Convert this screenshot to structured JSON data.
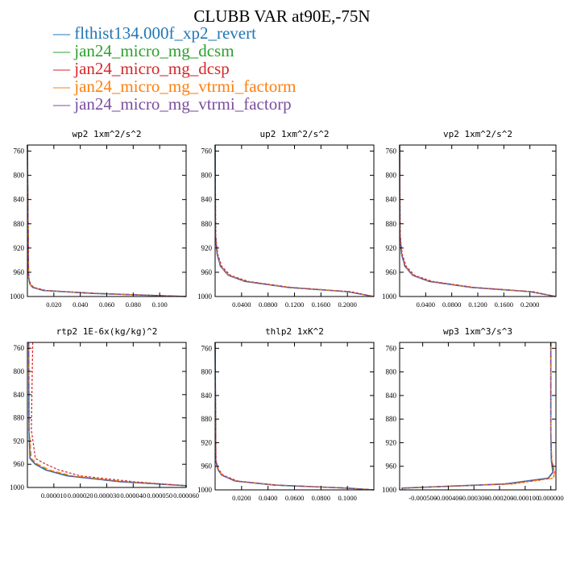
{
  "title": "CLUBB VAR at90E,-75N",
  "legend": [
    {
      "label": "flthist134.000f_xp2_revert",
      "color": "#1f77b4"
    },
    {
      "label": "jan24_micro_mg_dcsm",
      "color": "#2ca02c"
    },
    {
      "label": "jan24_micro_mg_dcsp",
      "color": "#d62728"
    },
    {
      "label": "jan24_micro_mg_vtrmi_factorm",
      "color": "#ff7f0e"
    },
    {
      "label": "jan24_micro_mg_vtrmi_factorp",
      "color": "#7b4ea0"
    }
  ],
  "chart_data": [
    {
      "type": "line",
      "title": "wp2   1xm^2/s^2",
      "xlim": [
        0,
        0.12
      ],
      "ylim": [
        1000,
        750
      ],
      "xticks": [
        "0.020",
        "0.040",
        "0.060",
        "0.080",
        "0.100"
      ],
      "xtick_values": [
        0.02,
        0.04,
        0.06,
        0.08,
        0.1
      ],
      "yticks": [
        760,
        800,
        840,
        880,
        920,
        960,
        1000
      ],
      "y": [
        750,
        960,
        970,
        980,
        985,
        990,
        995,
        1000
      ],
      "series": [
        {
          "values": [
            0.0,
            0.0008,
            0.001,
            0.002,
            0.004,
            0.012,
            0.05,
            0.12
          ]
        },
        {
          "values": [
            0.0,
            0.0008,
            0.001,
            0.0021,
            0.0042,
            0.012,
            0.052,
            0.12
          ]
        },
        {
          "values": [
            0.0,
            0.001,
            0.0013,
            0.0025,
            0.005,
            0.014,
            0.055,
            0.12
          ]
        },
        {
          "values": [
            0.0,
            0.0009,
            0.0011,
            0.0022,
            0.0043,
            0.013,
            0.051,
            0.12
          ]
        },
        {
          "values": [
            0.0,
            0.0008,
            0.001,
            0.002,
            0.0041,
            0.012,
            0.05,
            0.12
          ]
        }
      ]
    },
    {
      "type": "line",
      "title": "up2   1xm^2/s^2",
      "xlim": [
        0,
        0.24
      ],
      "ylim": [
        1000,
        750
      ],
      "xticks": [
        "0.0400",
        "0.0800",
        "0.1200",
        "0.1600",
        "0.2000"
      ],
      "xtick_values": [
        0.04,
        0.08,
        0.12,
        0.16,
        0.2
      ],
      "yticks": [
        760,
        800,
        840,
        880,
        920,
        960,
        1000
      ],
      "y": [
        750,
        900,
        930,
        950,
        965,
        975,
        985,
        992,
        1000
      ],
      "series": [
        {
          "values": [
            0.0,
            0.0005,
            0.003,
            0.008,
            0.02,
            0.045,
            0.11,
            0.2,
            0.24
          ]
        },
        {
          "values": [
            0.0,
            0.0005,
            0.003,
            0.0085,
            0.021,
            0.046,
            0.112,
            0.2,
            0.24
          ]
        },
        {
          "values": [
            0.0,
            0.001,
            0.004,
            0.01,
            0.023,
            0.05,
            0.115,
            0.205,
            0.24
          ]
        },
        {
          "values": [
            0.0,
            0.0005,
            0.003,
            0.0082,
            0.0205,
            0.046,
            0.11,
            0.2,
            0.24
          ]
        },
        {
          "values": [
            0.0,
            0.0005,
            0.003,
            0.008,
            0.02,
            0.045,
            0.11,
            0.2,
            0.24
          ]
        }
      ]
    },
    {
      "type": "line",
      "title": "vp2   1xm^2/s^2",
      "xlim": [
        0,
        0.24
      ],
      "ylim": [
        1000,
        750
      ],
      "xticks": [
        "0.0400",
        "0.0800",
        "0.1200",
        "0.1600",
        "0.2000"
      ],
      "xtick_values": [
        0.04,
        0.08,
        0.12,
        0.16,
        0.2
      ],
      "yticks": [
        760,
        800,
        840,
        880,
        920,
        960,
        1000
      ],
      "y": [
        750,
        900,
        930,
        950,
        965,
        975,
        985,
        992,
        1000
      ],
      "series": [
        {
          "values": [
            0.0,
            0.0005,
            0.003,
            0.008,
            0.02,
            0.045,
            0.11,
            0.2,
            0.24
          ]
        },
        {
          "values": [
            0.0,
            0.0005,
            0.003,
            0.0085,
            0.021,
            0.046,
            0.112,
            0.2,
            0.24
          ]
        },
        {
          "values": [
            0.0,
            0.001,
            0.004,
            0.01,
            0.023,
            0.05,
            0.115,
            0.205,
            0.24
          ]
        },
        {
          "values": [
            0.0,
            0.0005,
            0.003,
            0.0082,
            0.0205,
            0.046,
            0.11,
            0.2,
            0.24
          ]
        },
        {
          "values": [
            0.0,
            0.0005,
            0.003,
            0.008,
            0.02,
            0.045,
            0.11,
            0.2,
            0.24
          ]
        }
      ]
    },
    {
      "type": "line",
      "title": "rtp2   1E-6x(kg/kg)^2",
      "xlim": [
        0,
        6e-05
      ],
      "ylim": [
        1000,
        750
      ],
      "xticks": [
        "0.000010",
        "0.000020",
        "0.000030",
        "0.000040",
        "0.000050",
        "0.000060"
      ],
      "xtick_values": [
        1e-05,
        2e-05,
        3e-05,
        4e-05,
        5e-05,
        6e-05
      ],
      "yticks": [
        760,
        800,
        840,
        880,
        920,
        960,
        1000
      ],
      "y": [
        750,
        900,
        950,
        960,
        970,
        980,
        990,
        997,
        1000
      ],
      "series": [
        {
          "values": [
            5e-07,
            6e-07,
            1e-06,
            3e-06,
            7e-06,
            1.5e-05,
            3.5e-05,
            6e-05,
            6e-05
          ]
        },
        {
          "values": [
            5e-07,
            6e-07,
            1.2e-06,
            3.5e-06,
            7.5e-06,
            1.6e-05,
            3.6e-05,
            6e-05,
            6e-05
          ]
        },
        {
          "values": [
            2e-06,
            1.5e-06,
            3e-06,
            7e-06,
            1.2e-05,
            2e-05,
            4e-05,
            6e-05,
            6e-05
          ]
        },
        {
          "values": [
            5e-07,
            7e-07,
            1.5e-06,
            4e-06,
            8.5e-06,
            1.7e-05,
            3.7e-05,
            6e-05,
            6e-05
          ]
        },
        {
          "values": [
            5e-07,
            6e-07,
            1e-06,
            3e-06,
            7.2e-06,
            1.5e-05,
            3.5e-05,
            6e-05,
            6e-05
          ]
        }
      ]
    },
    {
      "type": "line",
      "title": "thlp2   1xK^2",
      "xlim": [
        0,
        0.12
      ],
      "ylim": [
        1000,
        750
      ],
      "xticks": [
        "0.0200",
        "0.0400",
        "0.0600",
        "0.0800",
        "0.1000"
      ],
      "xtick_values": [
        0.02,
        0.04,
        0.06,
        0.08,
        0.1
      ],
      "yticks": [
        760,
        800,
        840,
        880,
        920,
        960,
        1000
      ],
      "y": [
        750,
        950,
        965,
        975,
        985,
        992,
        997,
        1000
      ],
      "series": [
        {
          "values": [
            0.0,
            0.0005,
            0.002,
            0.005,
            0.015,
            0.045,
            0.1,
            0.12
          ]
        },
        {
          "values": [
            0.0,
            0.0005,
            0.002,
            0.0052,
            0.016,
            0.046,
            0.1,
            0.12
          ]
        },
        {
          "values": [
            0.0,
            0.0007,
            0.0025,
            0.006,
            0.017,
            0.048,
            0.1,
            0.12
          ]
        },
        {
          "values": [
            0.0,
            0.0005,
            0.002,
            0.0053,
            0.0155,
            0.046,
            0.1,
            0.12
          ]
        },
        {
          "values": [
            0.0,
            0.0005,
            0.002,
            0.005,
            0.015,
            0.045,
            0.1,
            0.12
          ]
        }
      ]
    },
    {
      "type": "line",
      "title": "wp3   1xm^3/s^3",
      "xlim": [
        -0.00059,
        2e-05
      ],
      "ylim": [
        1000,
        750
      ],
      "xticks": [
        "-0.000500",
        "-0.000400",
        "-0.000300",
        "-0.000200",
        "-0.000100",
        "0.000000"
      ],
      "xtick_values": [
        -0.0005,
        -0.0004,
        -0.0003,
        -0.0002,
        -0.0001,
        0.0
      ],
      "yticks": [
        760,
        800,
        840,
        880,
        920,
        960,
        1000
      ],
      "y": [
        750,
        900,
        950,
        970,
        980,
        990,
        997,
        1000
      ],
      "series": [
        {
          "values": [
            0.0,
            0.0,
            2e-06,
            8e-06,
            -1e-05,
            -0.00018,
            -0.00058,
            -0.00058
          ]
        },
        {
          "values": [
            0.0,
            0.0,
            3e-06,
            1e-05,
            -8e-06,
            -0.00017,
            -0.00057,
            -0.00057
          ]
        },
        {
          "values": [
            0.0,
            0.0,
            4e-06,
            1.5e-05,
            1e-05,
            -0.00015,
            -0.00059,
            -0.00059
          ]
        },
        {
          "values": [
            0.0,
            0.0,
            4e-06,
            1.4e-05,
            1.2e-05,
            -0.00016,
            -0.00058,
            -0.00058
          ]
        },
        {
          "values": [
            0.0,
            0.0,
            2e-06,
            8e-06,
            -1e-05,
            -0.00018,
            -0.00058,
            -0.00058
          ]
        }
      ]
    }
  ]
}
